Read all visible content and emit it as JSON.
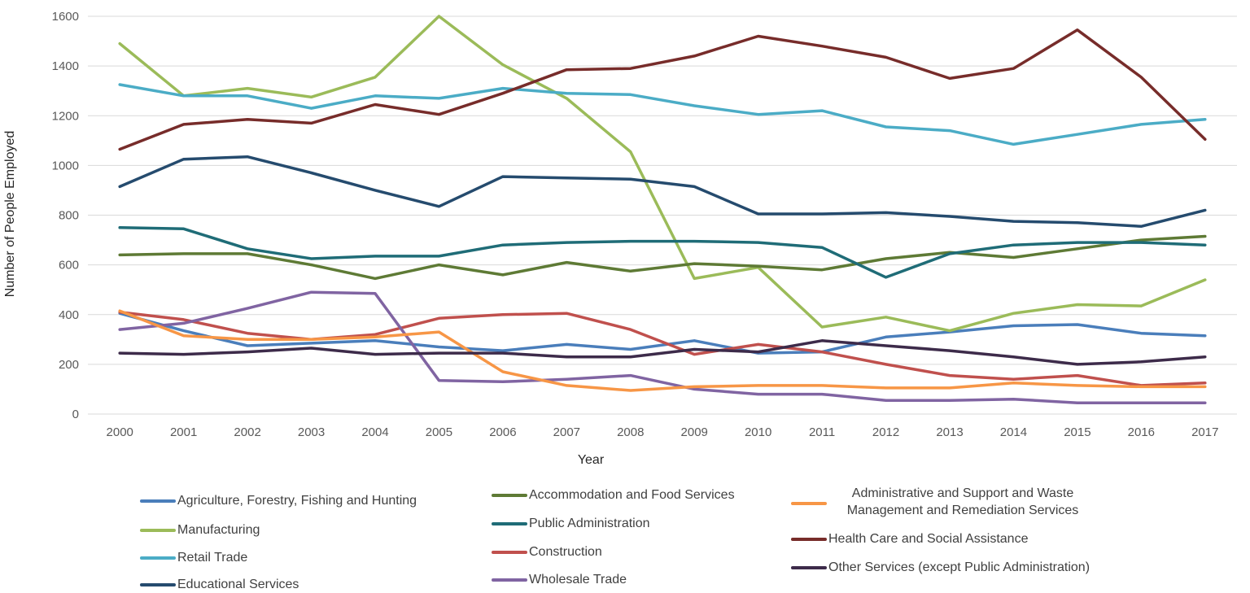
{
  "chart_data": {
    "type": "line",
    "title": "",
    "xlabel": "Year",
    "ylabel": "Number of People Employed",
    "ylim": [
      0,
      1600
    ],
    "yticks": [
      0,
      200,
      400,
      600,
      800,
      1000,
      1200,
      1400,
      1600
    ],
    "grid": true,
    "legend_position": "bottom",
    "categories": [
      "2000",
      "2001",
      "2002",
      "2003",
      "2004",
      "2005",
      "2006",
      "2007",
      "2008",
      "2009",
      "2010",
      "2011",
      "2012",
      "2013",
      "2014",
      "2015",
      "2016",
      "2017"
    ],
    "series": [
      {
        "name": "Agriculture, Forestry, Fishing and Hunting",
        "color": "#4a7ebb",
        "values": [
          405,
          335,
          275,
          285,
          295,
          270,
          255,
          280,
          260,
          295,
          245,
          250,
          310,
          330,
          355,
          360,
          325,
          315
        ]
      },
      {
        "name": "Manufacturing",
        "color": "#9bbb59",
        "values": [
          1490,
          1280,
          1310,
          1275,
          1355,
          1600,
          1405,
          1270,
          1055,
          545,
          590,
          350,
          390,
          335,
          405,
          440,
          435,
          540
        ]
      },
      {
        "name": "Retail Trade",
        "color": "#4bacc6",
        "values": [
          1325,
          1280,
          1280,
          1230,
          1280,
          1270,
          1310,
          1290,
          1285,
          1240,
          1205,
          1220,
          1155,
          1140,
          1085,
          1125,
          1165,
          1185
        ]
      },
      {
        "name": "Educational Services",
        "color": "#254b6e",
        "values": [
          915,
          1025,
          1035,
          970,
          900,
          835,
          955,
          950,
          945,
          915,
          805,
          805,
          810,
          795,
          775,
          770,
          755,
          820
        ]
      },
      {
        "name": "Accommodation and Food Services",
        "color": "#5e7a35",
        "values": [
          640,
          645,
          645,
          600,
          545,
          600,
          560,
          610,
          575,
          605,
          595,
          580,
          625,
          650,
          630,
          665,
          700,
          715
        ]
      },
      {
        "name": "Public Administration",
        "color": "#1f6c77",
        "values": [
          750,
          745,
          665,
          625,
          635,
          635,
          680,
          690,
          695,
          695,
          690,
          670,
          550,
          645,
          680,
          690,
          690,
          680
        ]
      },
      {
        "name": "Construction",
        "color": "#c0504d",
        "values": [
          410,
          380,
          325,
          300,
          320,
          385,
          400,
          405,
          340,
          240,
          280,
          250,
          200,
          155,
          140,
          155,
          115,
          125
        ]
      },
      {
        "name": "Wholesale Trade",
        "color": "#8064a2",
        "values": [
          340,
          365,
          425,
          490,
          485,
          135,
          130,
          140,
          155,
          100,
          80,
          80,
          55,
          55,
          60,
          45,
          45,
          45
        ]
      },
      {
        "name": "Administrative and Support and Waste Management and Remediation Services",
        "color": "#f79646",
        "values": [
          415,
          315,
          300,
          300,
          310,
          330,
          170,
          115,
          95,
          110,
          115,
          115,
          105,
          105,
          125,
          115,
          110,
          110
        ]
      },
      {
        "name": "Health Care and Social Assistance",
        "color": "#772c2a",
        "values": [
          1065,
          1165,
          1185,
          1170,
          1245,
          1205,
          1290,
          1385,
          1390,
          1440,
          1520,
          1480,
          1435,
          1350,
          1390,
          1545,
          1355,
          1105
        ]
      },
      {
        "name": "Other Services (except Public Administration)",
        "color": "#3d2b4a",
        "values": [
          245,
          240,
          250,
          265,
          240,
          245,
          245,
          230,
          230,
          260,
          250,
          295,
          275,
          255,
          230,
          200,
          210,
          230
        ]
      }
    ]
  }
}
